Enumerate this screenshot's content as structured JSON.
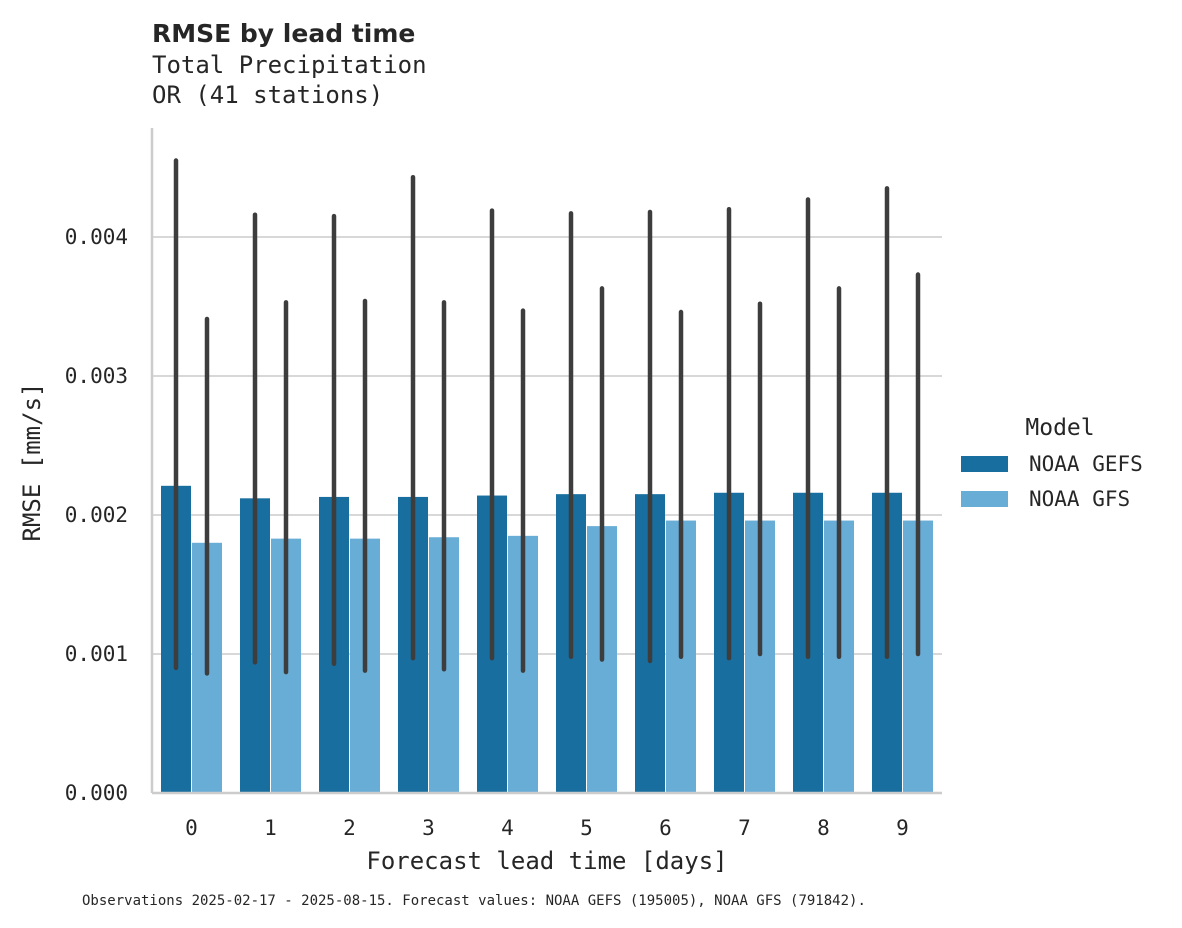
{
  "chart_data": {
    "type": "bar",
    "title": "RMSE by lead time",
    "subtitle_lines": [
      "Total Precipitation",
      "OR (41 stations)"
    ],
    "xlabel": "Forecast lead time [days]",
    "ylabel": "RMSE [mm/s]",
    "categories": [
      "0",
      "1",
      "2",
      "3",
      "4",
      "5",
      "6",
      "7",
      "8",
      "9"
    ],
    "ylim": [
      0,
      0.0048
    ],
    "yticks": [
      0.0,
      0.001,
      0.002,
      0.003,
      0.004
    ],
    "ytick_labels": [
      "0.000",
      "0.001",
      "0.002",
      "0.003",
      "0.004"
    ],
    "grid": "horizontal",
    "legend": {
      "title": "Model",
      "placement": "right"
    },
    "series": [
      {
        "name": "NOAA GEFS",
        "color": "#176e9f",
        "values": [
          0.00221,
          0.00212,
          0.00213,
          0.00213,
          0.00214,
          0.00215,
          0.00215,
          0.00216,
          0.00216,
          0.00216
        ],
        "err_low": [
          0.0009,
          0.00094,
          0.00093,
          0.00097,
          0.00097,
          0.00098,
          0.00095,
          0.00097,
          0.00098,
          0.00098
        ],
        "err_high": [
          0.00455,
          0.00416,
          0.00415,
          0.00443,
          0.00419,
          0.00417,
          0.00418,
          0.0042,
          0.00427,
          0.00435
        ]
      },
      {
        "name": "NOAA GFS",
        "color": "#68add6",
        "values": [
          0.0018,
          0.00183,
          0.00183,
          0.00184,
          0.00185,
          0.00192,
          0.00196,
          0.00196,
          0.00196,
          0.00196
        ],
        "err_low": [
          0.00086,
          0.00087,
          0.00088,
          0.00089,
          0.00088,
          0.00096,
          0.00098,
          0.001,
          0.00098,
          0.001
        ],
        "err_high": [
          0.00341,
          0.00353,
          0.00354,
          0.00353,
          0.00347,
          0.00363,
          0.00346,
          0.00352,
          0.00363,
          0.00373
        ]
      }
    ],
    "caption": "Observations 2025-02-17 - 2025-08-15. Forecast values: NOAA GEFS (195005), NOAA GFS (791842)."
  }
}
